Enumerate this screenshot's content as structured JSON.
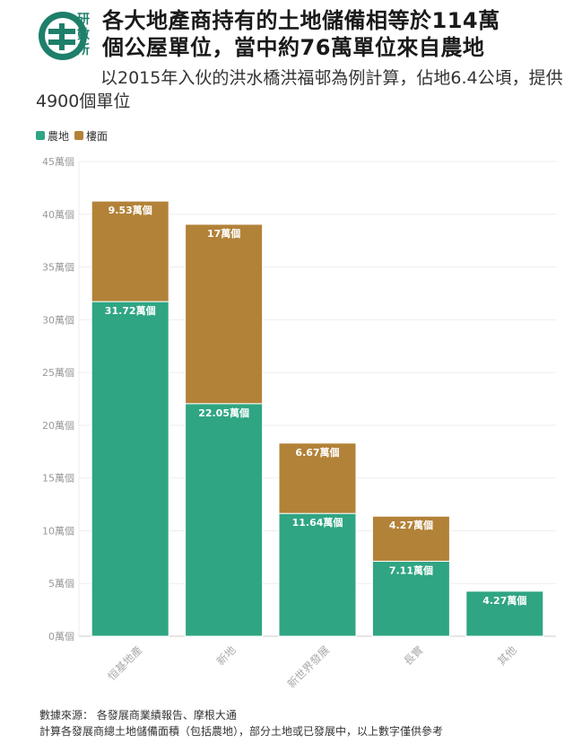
{
  "header": {
    "logo_text": "研數所",
    "title_line1": "各大地產商持有的土地儲備相等於114萬",
    "title_line2": "個公屋單位，當中約76萬單位來自農地",
    "subtitle": "以2015年入伙的洪水橋洪福邨為例計算，佔地6.4公頃，提供4900個單位"
  },
  "legend": {
    "items": [
      {
        "label": "農地",
        "color": "#2fa583"
      },
      {
        "label": "樓面",
        "color": "#b28238"
      }
    ]
  },
  "footer": {
    "line1": "數據來源： 各發展商業績報告、摩根大通",
    "line2": "計算各發展商總土地儲備面積（包括農地），部分土地或已發展中，以上數字僅供參考"
  },
  "chart_data": {
    "type": "bar",
    "stacked": true,
    "categories": [
      "恒基地產",
      "新地",
      "新世界發展",
      "長實",
      "其他"
    ],
    "series": [
      {
        "name": "農地",
        "color": "#2fa583",
        "values": [
          31.72,
          22.05,
          11.64,
          7.11,
          4.27
        ],
        "labels": [
          "31.72萬個",
          "22.05萬個",
          "11.64萬個",
          "7.11萬個",
          "4.27萬個"
        ]
      },
      {
        "name": "樓面",
        "color": "#b28238",
        "values": [
          9.53,
          17,
          6.67,
          4.27,
          0
        ],
        "labels": [
          "9.53萬個",
          "17萬個",
          "6.67萬個",
          "4.27萬個",
          ""
        ]
      }
    ],
    "ylim": [
      0,
      45
    ],
    "yticks": [
      0,
      5,
      10,
      15,
      20,
      25,
      30,
      35,
      40,
      45
    ],
    "ytick_labels": [
      "0萬個",
      "5萬個",
      "10萬個",
      "15萬個",
      "20萬個",
      "25萬個",
      "30萬個",
      "35萬個",
      "40萬個",
      "45萬個"
    ],
    "grid": true,
    "legend_position": "top-left"
  }
}
